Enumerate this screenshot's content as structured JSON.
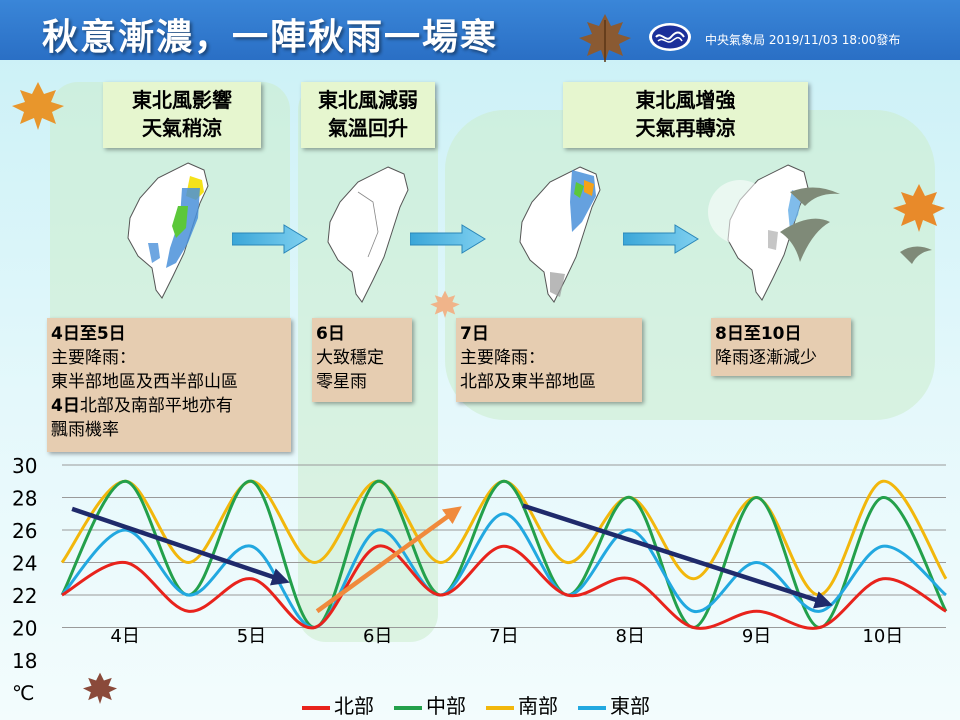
{
  "header": {
    "title": "秋意漸濃，一陣秋雨一場寒",
    "agency": "中央氣象局 2019/11/03 18:00發布"
  },
  "colors": {
    "header_bg": "#2a6fc5",
    "north": "#e8231c",
    "central": "#23a04b",
    "south": "#f2b70c",
    "east": "#22a8e0",
    "trend_down": "#1f2a6b",
    "trend_up": "#f08a3c"
  },
  "periods": [
    {
      "heading": [
        "東北風影響",
        "天氣稍涼"
      ],
      "notes": [
        {
          "text": "4日至5日",
          "bold": true
        },
        {
          "text": "主要降雨："
        },
        {
          "text": "東半部地區及西半部山區"
        },
        {
          "bold_part": "4日",
          "text": "北部及南部平地亦有"
        },
        {
          "text": "飄雨機率"
        }
      ]
    },
    {
      "heading": [
        "東北風減弱",
        "氣溫回升"
      ],
      "notes": [
        {
          "text": "6日",
          "bold": true
        },
        {
          "text": "大致穩定"
        },
        {
          "text": "零星雨"
        }
      ]
    },
    {
      "heading": [
        "東北風增強",
        "天氣再轉涼"
      ],
      "notes_a": [
        {
          "text": "7日",
          "bold": true
        },
        {
          "text": "主要降雨："
        },
        {
          "text": "北部及東半部地區"
        }
      ],
      "notes_b": [
        {
          "text": "8日至10日",
          "bold": true
        },
        {
          "text": "降雨逐漸減少"
        }
      ]
    }
  ],
  "legend": [
    {
      "label": "北部",
      "color": "#e8231c"
    },
    {
      "label": "中部",
      "color": "#23a04b"
    },
    {
      "label": "南部",
      "color": "#f2b70c"
    },
    {
      "label": "東部",
      "color": "#22a8e0"
    }
  ],
  "icons": [
    "maple-leaf-icon",
    "bird-icon",
    "cwb-logo-icon",
    "right-arrow-icon",
    "taiwan-map-icon"
  ],
  "chart_data": {
    "type": "line",
    "title": "",
    "xlabel": "",
    "ylabel": "℃",
    "ylim": [
      18,
      30
    ],
    "yticks": [
      30,
      28,
      26,
      24,
      22,
      20,
      18
    ],
    "grid": true,
    "x_range": [
      3.5,
      10.5
    ],
    "categories": [
      "4日",
      "5日",
      "6日",
      "7日",
      "8日",
      "9日",
      "10日"
    ],
    "category_x": [
      4,
      5,
      6,
      7,
      8,
      9,
      10
    ],
    "series": [
      {
        "name": "北部",
        "color": "#e8231c",
        "x": [
          3.5,
          4.0,
          4.5,
          5.0,
          5.5,
          6.0,
          6.5,
          7.0,
          7.5,
          8.0,
          8.5,
          9.0,
          9.5,
          10.0,
          10.5
        ],
        "y": [
          22,
          24,
          21,
          23,
          20,
          25,
          22,
          25,
          22,
          23,
          20,
          21,
          20,
          23,
          21
        ]
      },
      {
        "name": "中部",
        "color": "#23a04b",
        "x": [
          3.5,
          4.0,
          4.5,
          5.0,
          5.5,
          6.0,
          6.5,
          7.0,
          7.5,
          8.0,
          8.5,
          9.0,
          9.5,
          10.0,
          10.5
        ],
        "y": [
          22,
          29,
          22,
          29,
          20,
          29,
          22,
          29,
          22,
          28,
          20,
          28,
          20,
          28,
          21
        ]
      },
      {
        "name": "南部",
        "color": "#f2b70c",
        "x": [
          3.5,
          4.0,
          4.5,
          5.0,
          5.5,
          6.0,
          6.5,
          7.0,
          7.5,
          8.0,
          8.5,
          9.0,
          9.5,
          10.0,
          10.5
        ],
        "y": [
          24,
          29,
          24,
          29,
          24,
          29,
          24,
          29,
          24,
          28,
          23,
          28,
          22,
          29,
          23
        ]
      },
      {
        "name": "東部",
        "color": "#22a8e0",
        "x": [
          3.5,
          4.0,
          4.5,
          5.0,
          5.5,
          6.0,
          6.5,
          7.0,
          7.5,
          8.0,
          8.5,
          9.0,
          9.5,
          10.0,
          10.5
        ],
        "y": [
          22,
          26,
          22,
          25,
          20,
          26,
          22,
          27,
          22,
          26,
          21,
          24,
          21,
          25,
          22
        ]
      }
    ],
    "annotations": [
      {
        "kind": "arrow",
        "color": "#1f2a6b",
        "from": [
          3.58,
          27.3
        ],
        "to": [
          5.25,
          22.9
        ]
      },
      {
        "kind": "arrow",
        "color": "#f08a3c",
        "from": [
          5.52,
          21.0
        ],
        "to": [
          6.62,
          27.2
        ]
      },
      {
        "kind": "arrow",
        "color": "#1f2a6b",
        "from": [
          7.15,
          27.5
        ],
        "to": [
          9.55,
          21.5
        ]
      }
    ]
  }
}
